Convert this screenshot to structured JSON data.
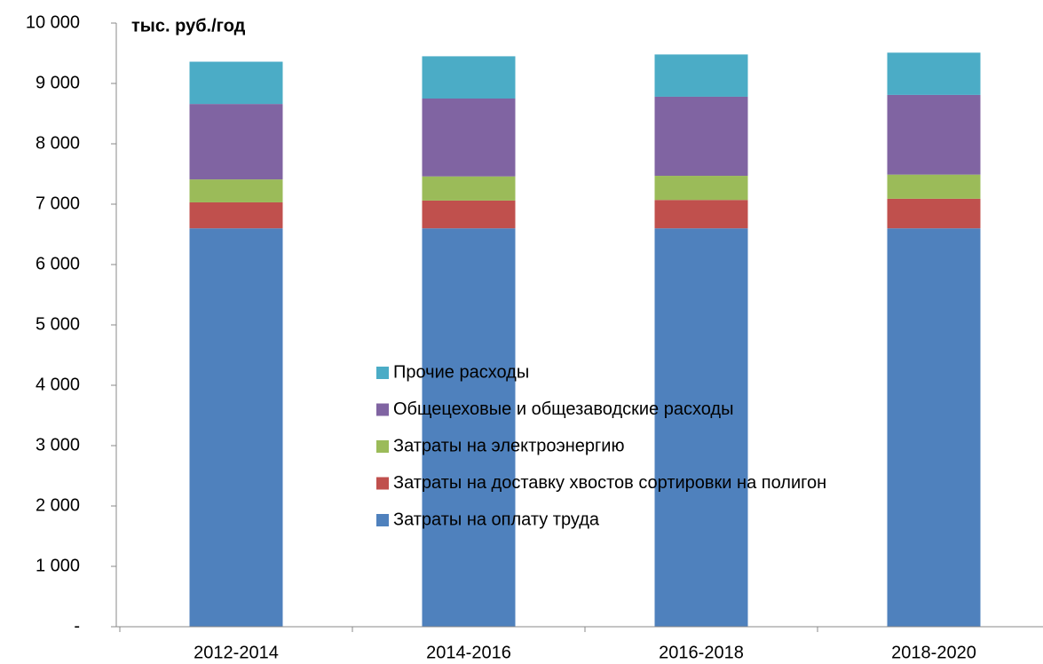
{
  "chart_data": {
    "type": "stacked_bar",
    "y_axis_label": "тыс. руб./год",
    "categories": [
      "2012-2014",
      "2014-2016",
      "2016-2018",
      "2018-2020"
    ],
    "series": [
      {
        "name": "Затраты на оплату труда",
        "color": "#4f81bd",
        "values": [
          6600,
          6600,
          6600,
          6600
        ]
      },
      {
        "name": "Затраты на доставку хвостов сортировки на полигон",
        "color": "#c0504d",
        "values": [
          430,
          460,
          470,
          490
        ]
      },
      {
        "name": "Затраты на электроэнергию",
        "color": "#9bbb59",
        "values": [
          380,
          400,
          400,
          400
        ]
      },
      {
        "name": "Общецеховые и общезаводские расходы",
        "color": "#8064a2",
        "values": [
          1250,
          1290,
          1310,
          1320
        ]
      },
      {
        "name": "Прочие расходы",
        "color": "#4bacc6",
        "values": [
          700,
          700,
          700,
          700
        ]
      }
    ],
    "ylim": [
      0,
      10000
    ],
    "yticks": [
      {
        "value": 0,
        "label": "-"
      },
      {
        "value": 1000,
        "label": "1 000"
      },
      {
        "value": 2000,
        "label": "2 000"
      },
      {
        "value": 3000,
        "label": "3 000"
      },
      {
        "value": 4000,
        "label": "4 000"
      },
      {
        "value": 5000,
        "label": "5 000"
      },
      {
        "value": 6000,
        "label": "6 000"
      },
      {
        "value": 7000,
        "label": "7 000"
      },
      {
        "value": 8000,
        "label": "8 000"
      },
      {
        "value": 9000,
        "label": "9 000"
      },
      {
        "value": 10000,
        "label": "10 000"
      }
    ],
    "grid": false
  }
}
